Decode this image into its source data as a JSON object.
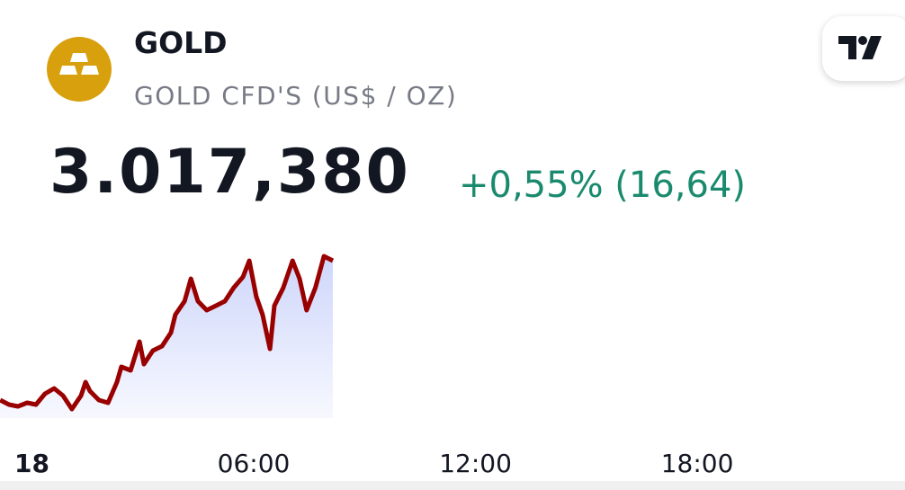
{
  "header": {
    "title": "GOLD",
    "subtitle": "GOLD CFD'S (US$ / OZ)",
    "price": "3.017,380",
    "change": "+0,55% (16,64)"
  },
  "chart_data": {
    "type": "area",
    "x": [
      -0.86,
      -0.62,
      -0.38,
      -0.13,
      0.11,
      0.35,
      0.6,
      0.84,
      1.08,
      1.33,
      1.45,
      1.57,
      1.81,
      2.06,
      2.3,
      2.42,
      2.67,
      2.91,
      3.03,
      3.27,
      3.52,
      3.76,
      3.88,
      4.13,
      4.3,
      4.49,
      4.73,
      4.98,
      5.22,
      5.46,
      5.71,
      5.88,
      6.07,
      6.24,
      6.44,
      6.56,
      6.8,
      7.05,
      7.24,
      7.43,
      7.67,
      7.9,
      8.14
    ],
    "series": [
      {
        "color": "#990000",
        "fill": "#c9d2fb",
        "values": [
          3001.5,
          3001.0,
          3000.8,
          3001.2,
          3001.0,
          3002.2,
          3002.8,
          3002.0,
          3000.5,
          3002.0,
          3003.5,
          3002.5,
          3001.5,
          3001.2,
          3003.5,
          3005.2,
          3004.8,
          3008.0,
          3005.5,
          3007.0,
          3007.5,
          3009.0,
          3011.0,
          3012.5,
          3015.0,
          3012.5,
          3011.5,
          3012.0,
          3012.5,
          3014.0,
          3015.2,
          3017.0,
          3013.0,
          3011.0,
          3007.2,
          3012.0,
          3014.0,
          3017.0,
          3015.0,
          3011.5,
          3014.0,
          3017.5,
          3017.0
        ]
      }
    ],
    "xlim": [
      -0.864,
      23.62
    ],
    "xticks": [
      {
        "value": 0,
        "label": "18"
      },
      {
        "value": 6,
        "label": "06:00"
      },
      {
        "value": 12,
        "label": "12:00"
      },
      {
        "value": 18,
        "label": "18:00"
      }
    ],
    "ylim": [
      2999.5,
      3018.5
    ]
  }
}
